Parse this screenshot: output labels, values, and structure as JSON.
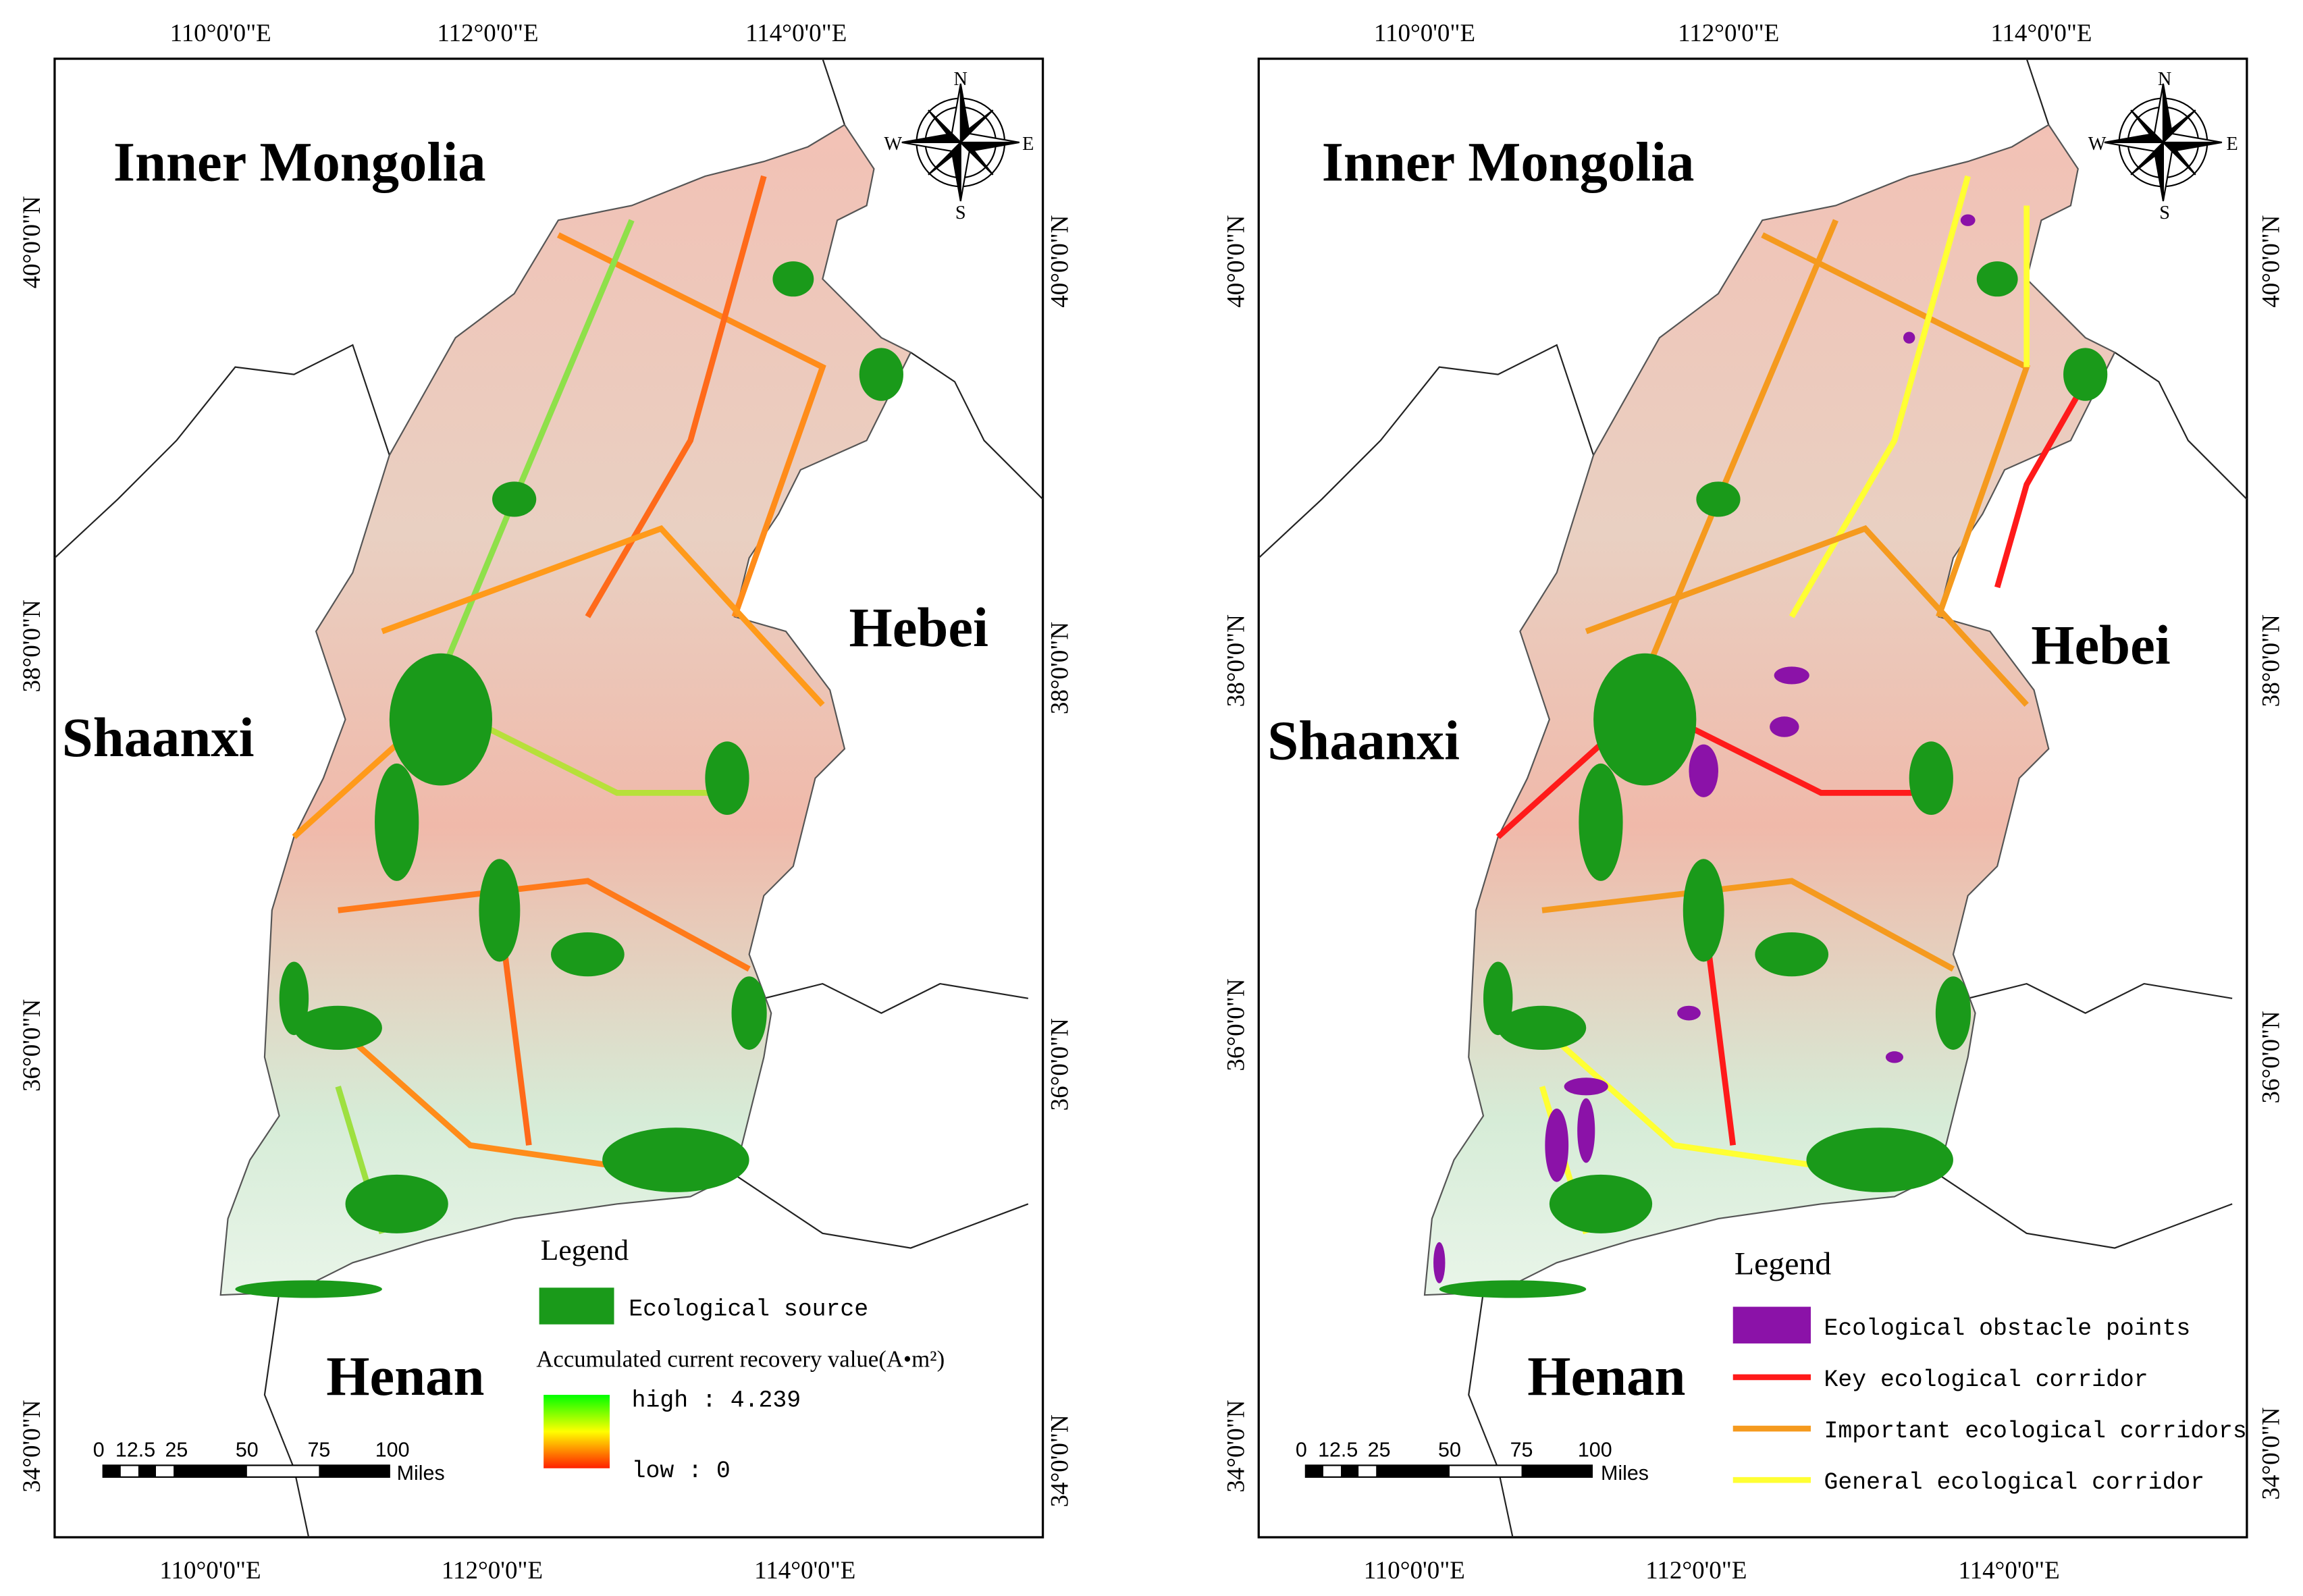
{
  "panels": [
    {
      "graticule": {
        "top": [
          "110°0'0\"E",
          "112°0'0\"E",
          "114°0'0\"E"
        ],
        "bottom": [
          "110°0'0\"E",
          "112°0'0\"E",
          "114°0'0\"E"
        ],
        "left": [
          "40°0'0\"N",
          "38°0'0\"N",
          "36°0'0\"N",
          "34°0'0\"N"
        ],
        "right": [
          "40°0'0\"N",
          "38°0'0\"N",
          "36°0'0\"N",
          "34°0'0\"N"
        ]
      },
      "regions": [
        "Inner Mongolia",
        "Shaanxi",
        "Hebei",
        "Henan"
      ],
      "compass": [
        "N",
        "S",
        "W",
        "E"
      ],
      "legend": {
        "title": "Legend",
        "items": [
          "Ecological source"
        ],
        "ramp_title": "Accumulated current recovery value(A•m²)",
        "high": "high : 4.239",
        "low": "low : 0"
      },
      "scale": {
        "ticks": [
          "0",
          "12.5",
          "25",
          "50",
          "75",
          "100"
        ],
        "unit": "Miles"
      }
    },
    {
      "graticule": {
        "top": [
          "110°0'0\"E",
          "112°0'0\"E",
          "114°0'0\"E"
        ],
        "bottom": [
          "110°0'0\"E",
          "112°0'0\"E",
          "114°0'0\"E"
        ],
        "left": [
          "40°0'0\"N",
          "38°0'0\"N",
          "36°0'0\"N",
          "34°0'0\"N"
        ],
        "right": [
          "40°0'0\"N",
          "38°0'0\"N",
          "36°0'0\"N",
          "34°0'0\"N"
        ]
      },
      "regions": [
        "Inner Mongolia",
        "Shaanxi",
        "Hebei",
        "Henan"
      ],
      "compass": [
        "N",
        "S",
        "W",
        "E"
      ],
      "legend": {
        "title": "Legend",
        "items": [
          "Ecological obstacle points",
          "Key ecological corridor",
          "Important ecological corridors",
          "General ecological corridor"
        ]
      },
      "scale": {
        "ticks": [
          "0",
          "12.5",
          "25",
          "50",
          "75",
          "100"
        ],
        "unit": "Miles"
      }
    }
  ]
}
